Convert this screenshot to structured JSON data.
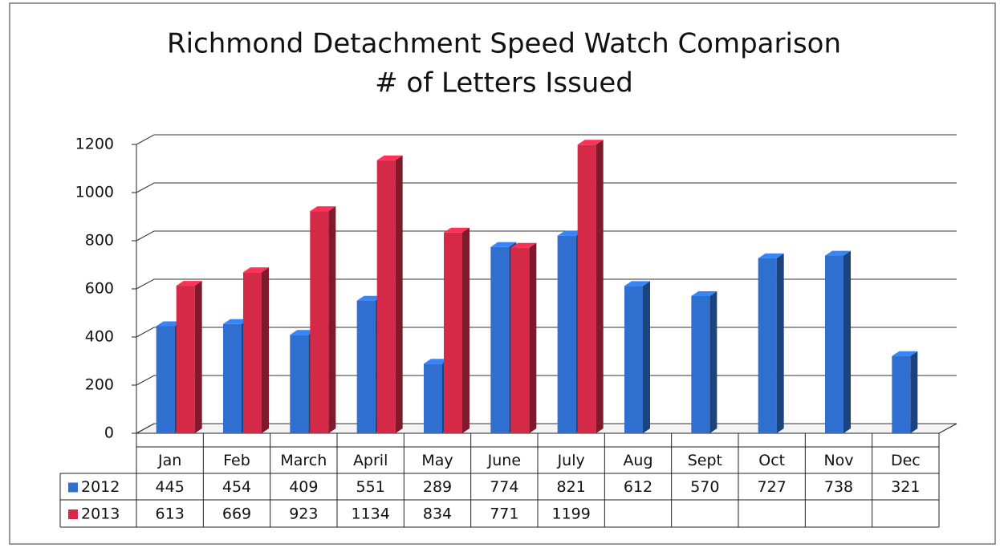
{
  "chart_data": {
    "type": "bar3d",
    "title": "Richmond Detachment Speed Watch Comparison",
    "subtitle": "# of Letters Issued",
    "categories": [
      "Jan",
      "Feb",
      "March",
      "April",
      "May",
      "June",
      "July",
      "Aug",
      "Sept",
      "Oct",
      "Nov",
      "Dec"
    ],
    "series": [
      {
        "name": "2012",
        "color": "#2f6fd0",
        "values": [
          445,
          454,
          409,
          551,
          289,
          774,
          821,
          612,
          570,
          727,
          738,
          321
        ]
      },
      {
        "name": "2013",
        "color": "#d42a48",
        "values": [
          613,
          669,
          923,
          1134,
          834,
          771,
          1199,
          null,
          null,
          null,
          null,
          null
        ]
      }
    ],
    "ylim": [
      0,
      1200
    ],
    "yticks": [
      0,
      200,
      400,
      600,
      800,
      1000,
      1200
    ],
    "grid": true,
    "data_table": true
  }
}
